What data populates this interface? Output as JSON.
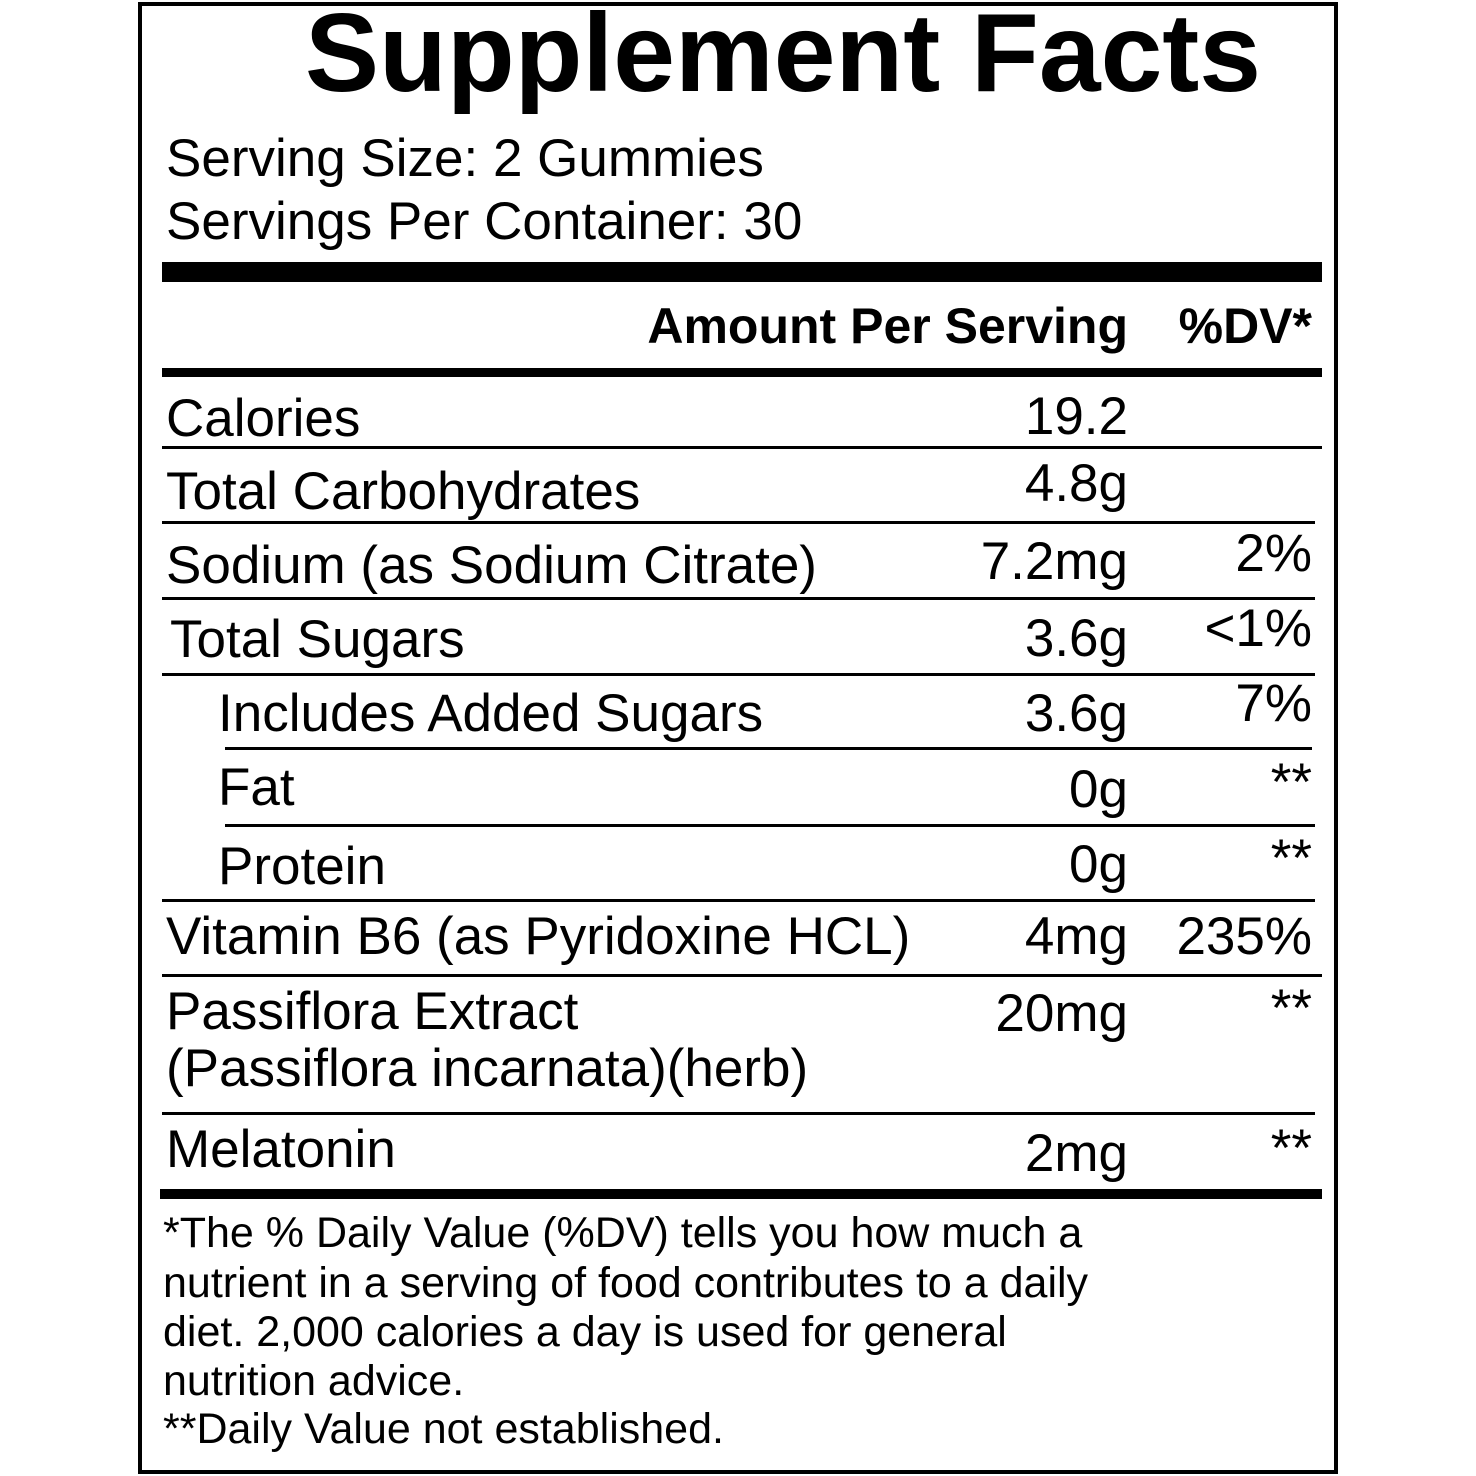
{
  "title": "Supplement Facts",
  "serving_size": "Serving Size: 2 Gummies",
  "servings_per_container": "Servings Per Container: 30",
  "header": {
    "amount": "Amount Per Serving",
    "dv": "%DV*"
  },
  "rows": [
    {
      "name": "Calories",
      "amount": "19.2",
      "dv": ""
    },
    {
      "name": "Total Carbohydrates",
      "amount": "4.8g",
      "dv": ""
    },
    {
      "name": "Sodium (as Sodium Citrate)",
      "amount": "7.2mg",
      "dv": "2%"
    },
    {
      "name": "Total Sugars",
      "amount": "3.6g",
      "dv": "<1%"
    },
    {
      "name": "Includes Added Sugars",
      "amount": "3.6g",
      "dv": "7%"
    },
    {
      "name": "Fat",
      "amount": "0g",
      "dv": "**"
    },
    {
      "name": "Protein",
      "amount": "0g",
      "dv": "**"
    },
    {
      "name": "Vitamin B6 (as Pyridoxine HCL)",
      "amount": "4mg",
      "dv": "235%"
    },
    {
      "name": "Passiflora Extract",
      "name2": "(Passiflora incarnata)(herb)",
      "amount": "20mg",
      "dv": "**"
    },
    {
      "name": "Melatonin",
      "amount": "2mg",
      "dv": "**"
    }
  ],
  "footnotes": [
    "*The % Daily Value (%DV) tells you how much a",
    "nutrient in a serving of food contributes to a daily",
    "diet. 2,000 calories a day is used for general",
    "nutrition advice.",
    "**Daily Value not established."
  ]
}
